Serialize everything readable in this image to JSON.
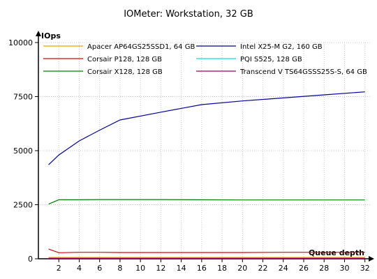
{
  "chart_data": {
    "type": "line",
    "title": "IOMeter: Workstation, 32 GB",
    "ylabel": "IOps",
    "xlabel": "Queue depth",
    "ylim": [
      0,
      10000
    ],
    "y_ticks": [
      0,
      2500,
      5000,
      7500,
      10000
    ],
    "x_ticks": [
      2,
      4,
      6,
      8,
      10,
      12,
      14,
      16,
      18,
      20,
      22,
      24,
      26,
      28,
      30,
      32
    ],
    "xlim": [
      0,
      32.5
    ],
    "x": [
      1,
      2,
      4,
      6,
      8,
      12,
      16,
      20,
      24,
      28,
      32
    ],
    "legend_position": "top",
    "series": [
      {
        "name": "Apacer AP64GS25SSD1, 64 GB",
        "color": "#f0a000",
        "values": [
          60,
          60,
          60,
          60,
          60,
          60,
          60,
          60,
          60,
          60,
          60
        ]
      },
      {
        "name": "Intel X25-M G2, 160 GB",
        "color": "#0000a0",
        "values": [
          4350,
          4800,
          5450,
          5950,
          6420,
          6780,
          7130,
          7300,
          7440,
          7580,
          7720
        ]
      },
      {
        "name": "Corsair P128, 128 GB",
        "color": "#e00000",
        "values": [
          450,
          280,
          300,
          300,
          290,
          290,
          290,
          290,
          300,
          300,
          300
        ]
      },
      {
        "name": "PQI S525, 128 GB",
        "color": "#00e0e0",
        "values": [
          40,
          40,
          40,
          40,
          40,
          40,
          40,
          40,
          40,
          40,
          40
        ]
      },
      {
        "name": "Corsair X128, 128 GB",
        "color": "#008000",
        "values": [
          2530,
          2730,
          2730,
          2740,
          2740,
          2740,
          2730,
          2720,
          2720,
          2720,
          2720
        ]
      },
      {
        "name": "Transcend V TS64GSSS25S-S, 64 GB",
        "color": "#a00060",
        "values": [
          20,
          20,
          20,
          20,
          20,
          20,
          20,
          20,
          20,
          20,
          20
        ]
      }
    ]
  }
}
